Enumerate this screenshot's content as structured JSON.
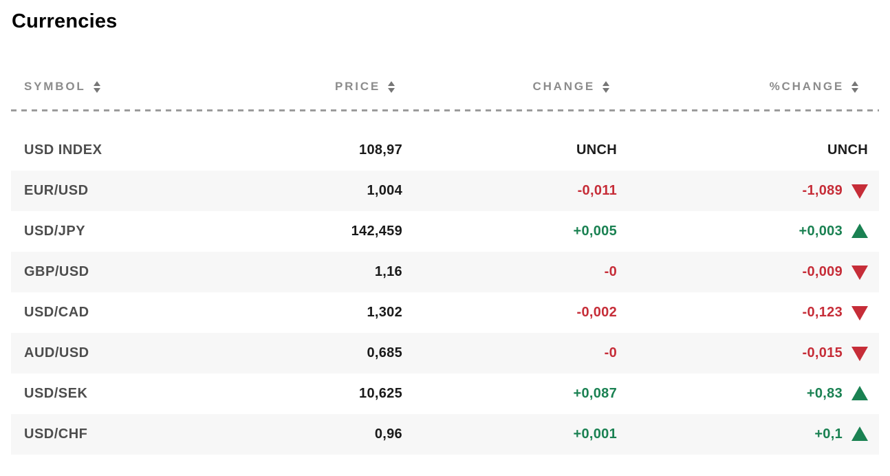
{
  "page": {
    "title": "Currencies"
  },
  "colors": {
    "positive_green": "#1a8152",
    "negative_red": "#c62d38",
    "neutral_black": "#1c1c1c",
    "header_gray": "#8c8c8c",
    "alt_row_bg": "#f7f7f7"
  },
  "table": {
    "columns": [
      {
        "key": "symbol",
        "label": "SYMBOL"
      },
      {
        "key": "price",
        "label": "PRICE"
      },
      {
        "key": "change",
        "label": "CHANGE"
      },
      {
        "key": "pct_change",
        "label": "%CHANGE"
      }
    ],
    "rows": [
      {
        "symbol": "USD INDEX",
        "price": "108,97",
        "change": "UNCH",
        "change_dir": "unch",
        "pct_change": "UNCH",
        "pct_dir": "unch",
        "arrow": "none"
      },
      {
        "symbol": "EUR/USD",
        "price": "1,004",
        "change": "-0,011",
        "change_dir": "down",
        "pct_change": "-1,089",
        "pct_dir": "down",
        "arrow": "down"
      },
      {
        "symbol": "USD/JPY",
        "price": "142,459",
        "change": "+0,005",
        "change_dir": "up",
        "pct_change": "+0,003",
        "pct_dir": "up",
        "arrow": "up"
      },
      {
        "symbol": "GBP/USD",
        "price": "1,16",
        "change": "-0",
        "change_dir": "down",
        "pct_change": "-0,009",
        "pct_dir": "down",
        "arrow": "down"
      },
      {
        "symbol": "USD/CAD",
        "price": "1,302",
        "change": "-0,002",
        "change_dir": "down",
        "pct_change": "-0,123",
        "pct_dir": "down",
        "arrow": "down"
      },
      {
        "symbol": "AUD/USD",
        "price": "0,685",
        "change": "-0",
        "change_dir": "down",
        "pct_change": "-0,015",
        "pct_dir": "down",
        "arrow": "down"
      },
      {
        "symbol": "USD/SEK",
        "price": "10,625",
        "change": "+0,087",
        "change_dir": "up",
        "pct_change": "+0,83",
        "pct_dir": "up",
        "arrow": "up"
      },
      {
        "symbol": "USD/CHF",
        "price": "0,96",
        "change": "+0,001",
        "change_dir": "up",
        "pct_change": "+0,1",
        "pct_dir": "up",
        "arrow": "up"
      }
    ]
  }
}
